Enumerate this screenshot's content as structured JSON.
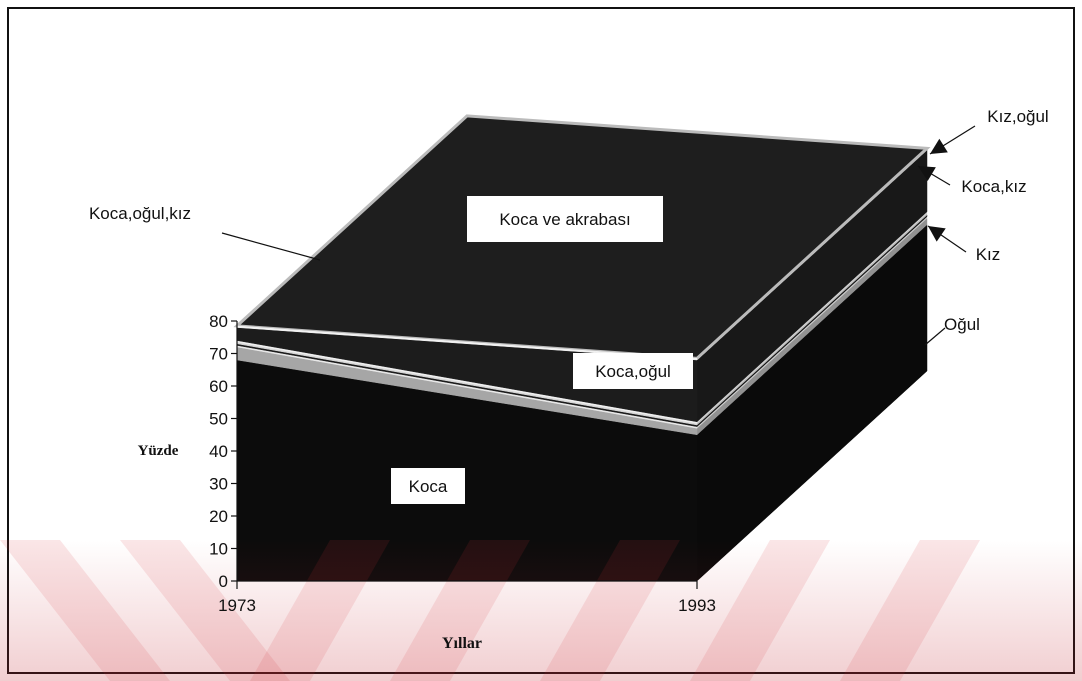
{
  "chart_data": {
    "type": "area",
    "stacked": true,
    "x": [
      "1973",
      "1993"
    ],
    "xlabel": "Yıllar",
    "ylabel": "Yüzde",
    "ylim": [
      0,
      80
    ],
    "yticks": [
      "0",
      "10",
      "20",
      "30",
      "40",
      "50",
      "60",
      "70",
      "80"
    ],
    "series": [
      {
        "name": "Koca",
        "values": [
          68,
          45
        ]
      },
      {
        "name": "Koca,oğul",
        "values": [
          4,
          2
        ]
      },
      {
        "name": "Oğul",
        "values": [
          0.5,
          0.5
        ]
      },
      {
        "name": "Koca,oğul,kız",
        "values": [
          0.5,
          0.5
        ]
      },
      {
        "name": "Kız",
        "values": [
          0.5,
          0.5
        ]
      },
      {
        "name": "Koca,kız",
        "values": [
          0.5,
          0.5
        ]
      },
      {
        "name": "Koca ve akrabası",
        "values": [
          4,
          19
        ]
      },
      {
        "name": "Kız,oğul",
        "values": [
          0.5,
          0.5
        ]
      }
    ],
    "colors": {
      "Koca": "#0c0c0c",
      "Koca,oğul": "#a6a6a6",
      "Oğul": "#e8e8e8",
      "Koca,oğul,kız": "#1a1a1a",
      "Kız": "#d8d8d8",
      "Koca,kız": "#efefef",
      "Koca ve akrabası": "#1c1c1c",
      "Kız,oğul": "#f2f2f2"
    },
    "inline_labels": [
      "Koca",
      "Koca,oğul",
      "Koca ve akrabası"
    ],
    "callout_labels": [
      "Kız,oğul",
      "Koca,kız",
      "Kız",
      "Oğul",
      "Koca,oğul,kız"
    ]
  }
}
